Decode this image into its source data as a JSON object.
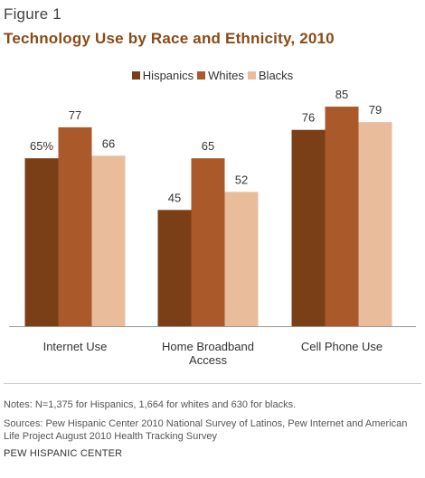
{
  "figure_label": "Figure 1",
  "chart_data": {
    "type": "bar",
    "title": "Technology Use by Race and Ethnicity, 2010",
    "categories": [
      [
        "Internet Use"
      ],
      [
        "Home Broadband",
        "Access"
      ],
      [
        "Cell Phone Use"
      ]
    ],
    "series": [
      {
        "name": "Hispanics",
        "color": "#7b3f17",
        "values": [
          65,
          45,
          76
        ],
        "labels": [
          "65%",
          "45",
          "76"
        ]
      },
      {
        "name": "Whites",
        "color": "#a9592a",
        "values": [
          77,
          65,
          85
        ],
        "labels": [
          "77",
          "65",
          "85"
        ]
      },
      {
        "name": "Blacks",
        "color": "#e9bd9c",
        "values": [
          66,
          52,
          79
        ],
        "labels": [
          "66",
          "52",
          "79"
        ]
      }
    ],
    "ylim": [
      0,
      85
    ],
    "grid": false,
    "legend_position": "top-center"
  },
  "notes": "Notes: N=1,375 for Hispanics, 1,664 for whites and 630 for blacks.",
  "sources": "Sources: Pew Hispanic Center 2010 National Survey of Latinos, Pew Internet and American Life Project August 2010 Health Tracking Survey",
  "credit": "PEW HISPANIC CENTER"
}
